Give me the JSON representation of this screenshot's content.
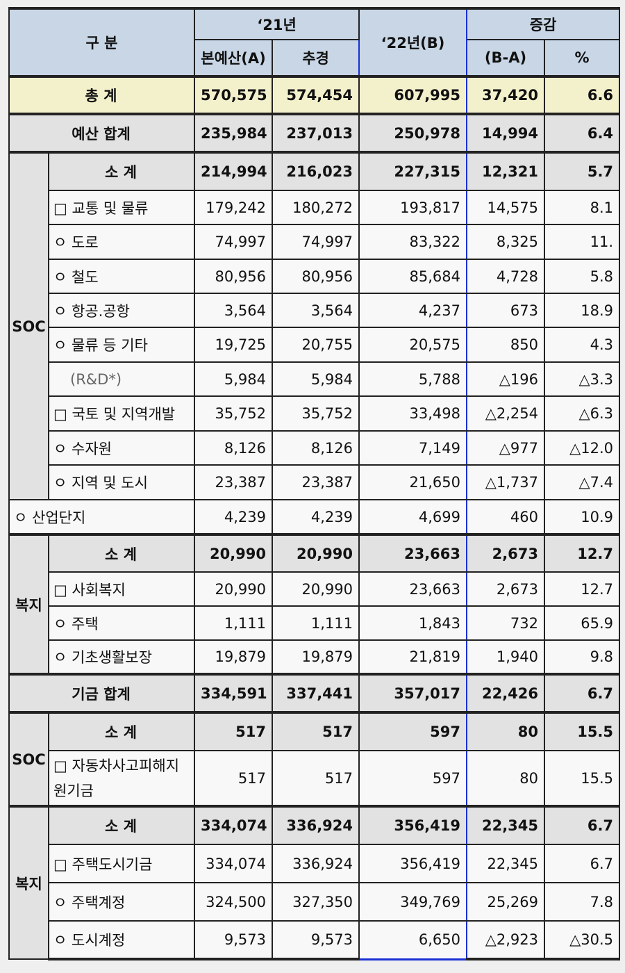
{
  "header": {
    "category": "구 분",
    "y21": "‘21년",
    "y22": "‘22년(B)",
    "change": "증감",
    "main_budget": "본예산(A)",
    "supplementary": "추경",
    "diff": "(B-A)",
    "pct": "%"
  },
  "rows": [
    {
      "type": "total",
      "label": "총 계",
      "values": [
        "570,575",
        "574,454",
        "607,995",
        "37,420",
        "6.6"
      ]
    },
    {
      "type": "sum",
      "label": "예산 합계",
      "values": [
        "235,984",
        "237,013",
        "250,978",
        "14,994",
        "6.4"
      ]
    },
    {
      "type": "sum",
      "group": "SOC",
      "label": "소 계",
      "values": [
        "214,994",
        "216,023",
        "227,315",
        "12,321",
        "5.7"
      ]
    },
    {
      "type": "item",
      "label": "□ 교통 및 물류",
      "values": [
        "179,242",
        "180,272",
        "193,817",
        "14,575",
        "8.1"
      ]
    },
    {
      "type": "item",
      "label": "ㅇ 도로",
      "values": [
        "74,997",
        "74,997",
        "83,322",
        "8,325",
        "11."
      ]
    },
    {
      "type": "item",
      "label": "ㅇ 철도",
      "values": [
        "80,956",
        "80,956",
        "85,684",
        "4,728",
        "5.8"
      ]
    },
    {
      "type": "item",
      "label": "ㅇ 항공.공항",
      "values": [
        "3,564",
        "3,564",
        "4,237",
        "673",
        "18.9"
      ]
    },
    {
      "type": "item",
      "label": "ㅇ 물류 등 기타",
      "values": [
        "19,725",
        "20,755",
        "20,575",
        "850",
        "4.3"
      ]
    },
    {
      "type": "rd",
      "label": "(R&D*)",
      "values": [
        "5,984",
        "5,984",
        "5,788",
        "△196",
        "△3.3"
      ]
    },
    {
      "type": "item",
      "label": "□ 국토 및 지역개발",
      "values": [
        "35,752",
        "35,752",
        "33,498",
        "△2,254",
        "△6.3"
      ]
    },
    {
      "type": "item",
      "label": "ㅇ 수자원",
      "values": [
        "8,126",
        "8,126",
        "7,149",
        "△977",
        "△12.0"
      ]
    },
    {
      "type": "item",
      "label": "ㅇ 지역 및 도시",
      "values": [
        "23,387",
        "23,387",
        "21,650",
        "△1,737",
        "△7.4"
      ]
    },
    {
      "type": "item",
      "label": "ㅇ 산업단지",
      "values": [
        "4,239",
        "4,239",
        "4,699",
        "460",
        "10.9"
      ]
    },
    {
      "type": "sum",
      "group": "복지",
      "label": "소 계",
      "values": [
        "20,990",
        "20,990",
        "23,663",
        "2,673",
        "12.7"
      ]
    },
    {
      "type": "item",
      "label": "□ 사회복지",
      "values": [
        "20,990",
        "20,990",
        "23,663",
        "2,673",
        "12.7"
      ]
    },
    {
      "type": "item",
      "label": "ㅇ 주택",
      "values": [
        "1,111",
        "1,111",
        "1,843",
        "732",
        "65.9"
      ]
    },
    {
      "type": "item",
      "label": "ㅇ 기초생활보장",
      "values": [
        "19,879",
        "19,879",
        "21,819",
        "1,940",
        "9.8"
      ]
    },
    {
      "type": "sum",
      "label": "기금 합계",
      "values": [
        "334,591",
        "337,441",
        "357,017",
        "22,426",
        "6.7"
      ]
    },
    {
      "type": "sum",
      "group": "SOC",
      "label": "소 계",
      "values": [
        "517",
        "517",
        "597",
        "80",
        "15.5"
      ]
    },
    {
      "type": "item",
      "label": "□  자동차사고피해지원기금",
      "values": [
        "517",
        "517",
        "597",
        "80",
        "15.5"
      ]
    },
    {
      "type": "sum",
      "group": "복지",
      "label": "소 계",
      "values": [
        "334,074",
        "336,924",
        "356,419",
        "22,345",
        "6.7"
      ]
    },
    {
      "type": "item",
      "label": "□ 주택도시기금",
      "values": [
        "334,074",
        "336,924",
        "356,419",
        "22,345",
        "6.7"
      ]
    },
    {
      "type": "item",
      "label": "ㅇ 주택계정",
      "values": [
        "324,500",
        "327,350",
        "349,769",
        "25,269",
        "7.8"
      ]
    },
    {
      "type": "item",
      "label": "ㅇ 도시계정",
      "values": [
        "9,573",
        "9,573",
        "6,650",
        "△2,923",
        "△30.5"
      ]
    }
  ]
}
